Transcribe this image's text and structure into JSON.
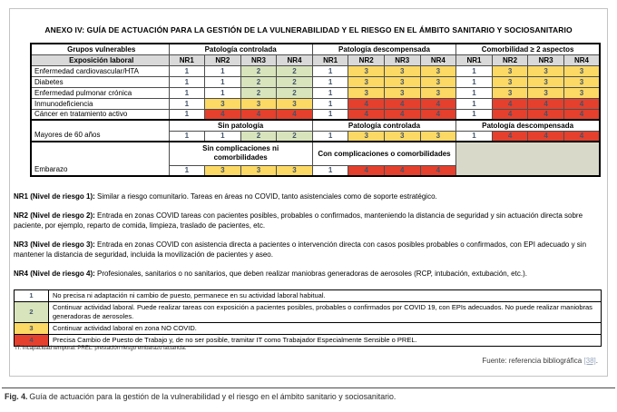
{
  "figure": {
    "title": "ANEXO IV: GUÍA DE ACTUACIÓN PARA LA GESTIÓN DE LA VULNERABILIDAD Y EL RIESGO EN EL ÁMBITO SANITARIO Y SOCIOSANITARIO",
    "main_table": {
      "label_header": "Grupos vulnerables",
      "exposure_header": "Exposición laboral",
      "col_groups": [
        "Patología controlada",
        "Patología descompensada",
        "Comorbilidad ≥ 2 aspectos"
      ],
      "nr_headers": [
        "NR1",
        "NR2",
        "NR3",
        "NR4"
      ],
      "disease_rows": [
        {
          "label": "Enfermedad cardiovascular/HTA",
          "values": [
            [
              1,
              1,
              2,
              2
            ],
            [
              1,
              3,
              3,
              3
            ],
            [
              1,
              3,
              3,
              3
            ]
          ]
        },
        {
          "label": "Diabetes",
          "values": [
            [
              1,
              1,
              2,
              2
            ],
            [
              1,
              3,
              3,
              3
            ],
            [
              1,
              3,
              3,
              3
            ]
          ]
        },
        {
          "label": "Enfermedad pulmonar crónica",
          "values": [
            [
              1,
              1,
              2,
              2
            ],
            [
              1,
              3,
              3,
              3
            ],
            [
              1,
              3,
              3,
              3
            ]
          ]
        },
        {
          "label": "Inmunodeficiencia",
          "values": [
            [
              1,
              3,
              3,
              3
            ],
            [
              1,
              4,
              4,
              4
            ],
            [
              1,
              4,
              4,
              4
            ]
          ]
        },
        {
          "label": "Cáncer en tratamiento activo",
          "values": [
            [
              1,
              4,
              4,
              4
            ],
            [
              1,
              4,
              4,
              4
            ],
            [
              1,
              4,
              4,
              4
            ]
          ]
        }
      ],
      "special_rows": [
        {
          "label": "Mayores de 60 años",
          "sub_headers": [
            "Sin patología",
            "Patología controlada",
            "Patología descompensada"
          ],
          "values": [
            [
              1,
              1,
              2,
              2
            ],
            [
              1,
              3,
              3,
              3
            ],
            [
              1,
              4,
              4,
              4
            ]
          ],
          "empty_last_group": false,
          "tall": false
        },
        {
          "label": "Embarazo",
          "sub_headers": [
            "Sin complicaciones ni comorbilidades",
            "Con complicaciones o comorbilidades"
          ],
          "values": [
            [
              1,
              3,
              3,
              3
            ],
            [
              1,
              4,
              4,
              4
            ]
          ],
          "empty_last_group": true,
          "tall": true
        }
      ]
    },
    "nr_definitions": [
      {
        "label": "NR1 (Nivel de riesgo 1):",
        "text": "Similar a riesgo comunitario. Tareas en áreas no COVID, tanto asistenciales como de soporte estratégico."
      },
      {
        "label": "NR2 (Nivel de riesgo 2):",
        "text": "Entrada en zonas COVID tareas con pacientes posibles, probables o confirmados, manteniendo la distancia de seguridad y sin actuación directa sobre paciente, por ejemplo, reparto de comida, limpieza, traslado de pacientes, etc."
      },
      {
        "label": "NR3 (Nivel de riesgo 3):",
        "text": "Entrada en zonas COVID con asistencia directa a pacientes o intervención directa con casos posibles probables o confirmados, con EPI adecuado y sin mantener la distancia de seguridad, incluida la movilización de pacientes y aseo."
      },
      {
        "label": "NR4 (Nivel de riesgo 4):",
        "text": "Profesionales, sanitarios o no sanitarios, que deben realizar maniobras generadoras de aerosoles (RCP, intubación, extubación, etc.)."
      }
    ],
    "legend": {
      "rows": [
        {
          "level": "1",
          "text": "No precisa ni adaptación ni cambio de puesto, permanece en su actividad laboral habitual."
        },
        {
          "level": "2",
          "text": "Continuar actividad laboral. Puede realizar tareas con exposición a pacientes posibles, probables o confirmados por COVID 19, con EPIs adecuados. No puede realizar maniobras generadoras de aerosoles."
        },
        {
          "level": "3",
          "text": "Continuar actividad laboral en zona NO COVID."
        },
        {
          "level": "4",
          "text": "Precisa Cambio de Puesto de Trabajo y, de no ser posible, tramitar IT como Trabajador Especialmente Sensible o PREL."
        }
      ]
    },
    "footnote": "IT: incapacidad temporal. PREL: prestación riesgo embarazo lactancia.",
    "source": {
      "prefix": "Fuente: referencia bibliográfica ",
      "link": "[38]",
      "suffix": "."
    }
  },
  "caption": {
    "label": "Fig. 4.",
    "text": "Guía de actuación para la gestión de la vulnerabilidad y el riesgo en el ámbito sanitario y sociosanitario."
  },
  "colors": {
    "level_1_bg": "#FFFFFF",
    "level_2_bg": "#D8E4BC",
    "level_3_bg": "#FBD964",
    "level_4_bg": "#E4402D",
    "header_gray": "#D9D9D9",
    "disabled_cell_bg": "#D9D9C9",
    "value_text": "#44546A",
    "reference_link": "#97A6BD"
  }
}
